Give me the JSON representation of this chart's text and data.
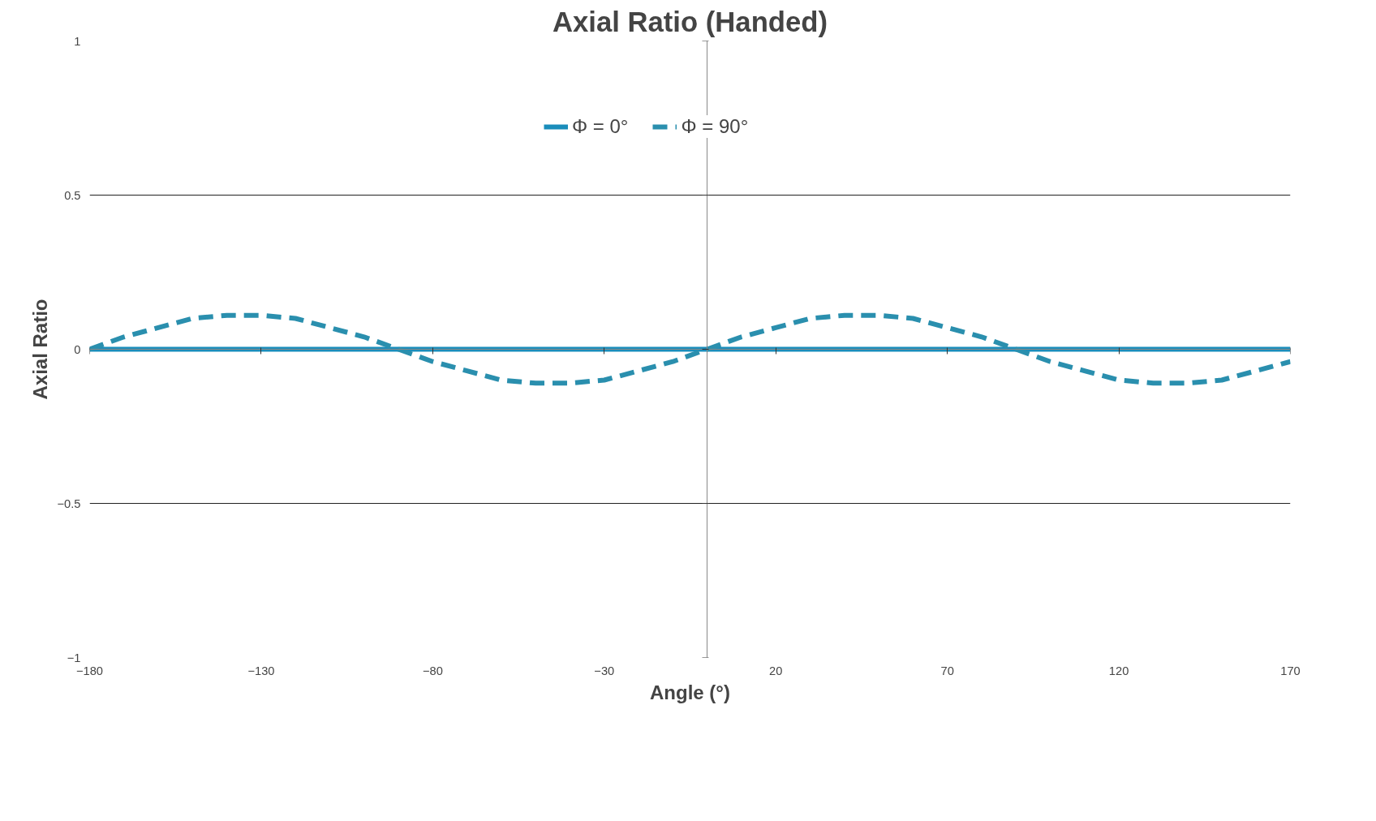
{
  "chart_data": {
    "type": "line",
    "title": "Axial Ratio (Handed)",
    "xlabel": "Angle (°)",
    "ylabel": "Axial Ratio",
    "x": [
      -180,
      -170,
      -160,
      -150,
      -140,
      -130,
      -120,
      -110,
      -100,
      -90,
      -80,
      -70,
      -60,
      -50,
      -40,
      -30,
      -20,
      -10,
      0,
      10,
      20,
      30,
      40,
      50,
      60,
      70,
      80,
      90,
      100,
      110,
      120,
      130,
      140,
      150,
      160,
      170
    ],
    "series": [
      {
        "name": "Φ = 0°",
        "color": "#1a8dbb",
        "line_style": "solid",
        "values": [
          0,
          0,
          0,
          0,
          0,
          0,
          0,
          0,
          0,
          0,
          0,
          0,
          0,
          0,
          0,
          0,
          0,
          0,
          0,
          0,
          0,
          0,
          0,
          0,
          0,
          0,
          0,
          0,
          0,
          0,
          0,
          0,
          0,
          0,
          0,
          0
        ]
      },
      {
        "name": "Φ = 90°",
        "color": "#2a8fae",
        "line_style": "dashed",
        "values": [
          0,
          0.04,
          0.07,
          0.1,
          0.11,
          0.11,
          0.1,
          0.07,
          0.04,
          0,
          -0.04,
          -0.07,
          -0.1,
          -0.11,
          -0.11,
          -0.1,
          -0.07,
          -0.04,
          0,
          0.04,
          0.07,
          0.1,
          0.11,
          0.11,
          0.1,
          0.07,
          0.04,
          0,
          -0.04,
          -0.07,
          -0.1,
          -0.11,
          -0.11,
          -0.1,
          -0.07,
          -0.04
        ]
      }
    ],
    "xlim": [
      -180,
      170
    ],
    "xticks": [
      -180,
      -130,
      -80,
      -30,
      20,
      70,
      120,
      170
    ],
    "ylim": [
      -1,
      1
    ],
    "yticks": [
      -1,
      -0.5,
      0,
      0.5,
      1
    ],
    "grid": "y",
    "legend": "top",
    "marker": "none"
  }
}
